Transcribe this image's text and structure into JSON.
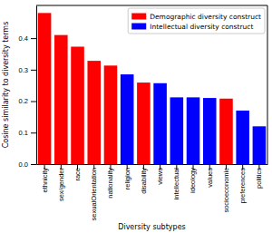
{
  "chart_data": {
    "type": "bar",
    "x_label": "Diversity subtypes",
    "y_label": "Cosine similarity to diversity terms",
    "categories": [
      "ethnicity",
      "sex/gender",
      "race",
      "sexualOrientation",
      "nationality",
      "religion",
      "disability",
      "views",
      "intellectual",
      "ideology",
      "values",
      "socioeconomic",
      "preferences",
      "politics"
    ],
    "series": [
      {
        "name": "Demographic diversity construct",
        "color": "#ff0000",
        "values": [
          0.48,
          0.41,
          0.373,
          0.328,
          0.313,
          null,
          0.259,
          null,
          null,
          null,
          null,
          0.208,
          null,
          null
        ]
      },
      {
        "name": "Intellectual diversity construct",
        "color": "#0000ff",
        "values": [
          null,
          null,
          null,
          null,
          null,
          0.285,
          null,
          0.257,
          0.212,
          0.212,
          0.21,
          null,
          0.17,
          0.12
        ]
      }
    ],
    "ylim": [
      0,
      0.504
    ],
    "yticks": [
      {
        "value": 0,
        "label": "0.0"
      },
      0.1,
      0.2,
      0.3,
      0.4
    ],
    "legend": "upper-right",
    "grid": false
  }
}
